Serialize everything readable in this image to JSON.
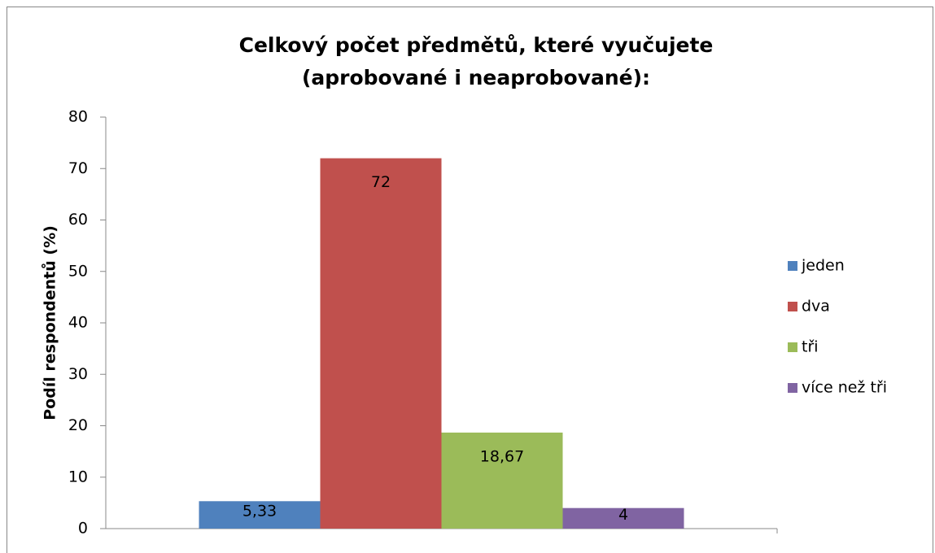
{
  "chart_data": {
    "type": "bar",
    "title": "Celkový počet předmětů, které vyučujete (aprobované i neaprobované):",
    "y_label": "Podíl respondentů (%)",
    "ylim": [
      0,
      80
    ],
    "yticks": [
      0,
      10,
      20,
      30,
      40,
      50,
      60,
      70,
      80
    ],
    "grid": false,
    "legend": "right",
    "series": [
      {
        "name": "jeden",
        "color": "#4f81bd",
        "values": [
          5.33
        ],
        "value_labels": [
          "5,33"
        ]
      },
      {
        "name": "dva",
        "color": "#c0504d",
        "values": [
          72
        ]
      },
      {
        "name": "tři",
        "color": "#9bbb59",
        "values": [
          18.67
        ],
        "value_labels": [
          "18,67"
        ]
      },
      {
        "name": "více než tři",
        "color": "#8064a2",
        "values": [
          4
        ]
      }
    ]
  }
}
